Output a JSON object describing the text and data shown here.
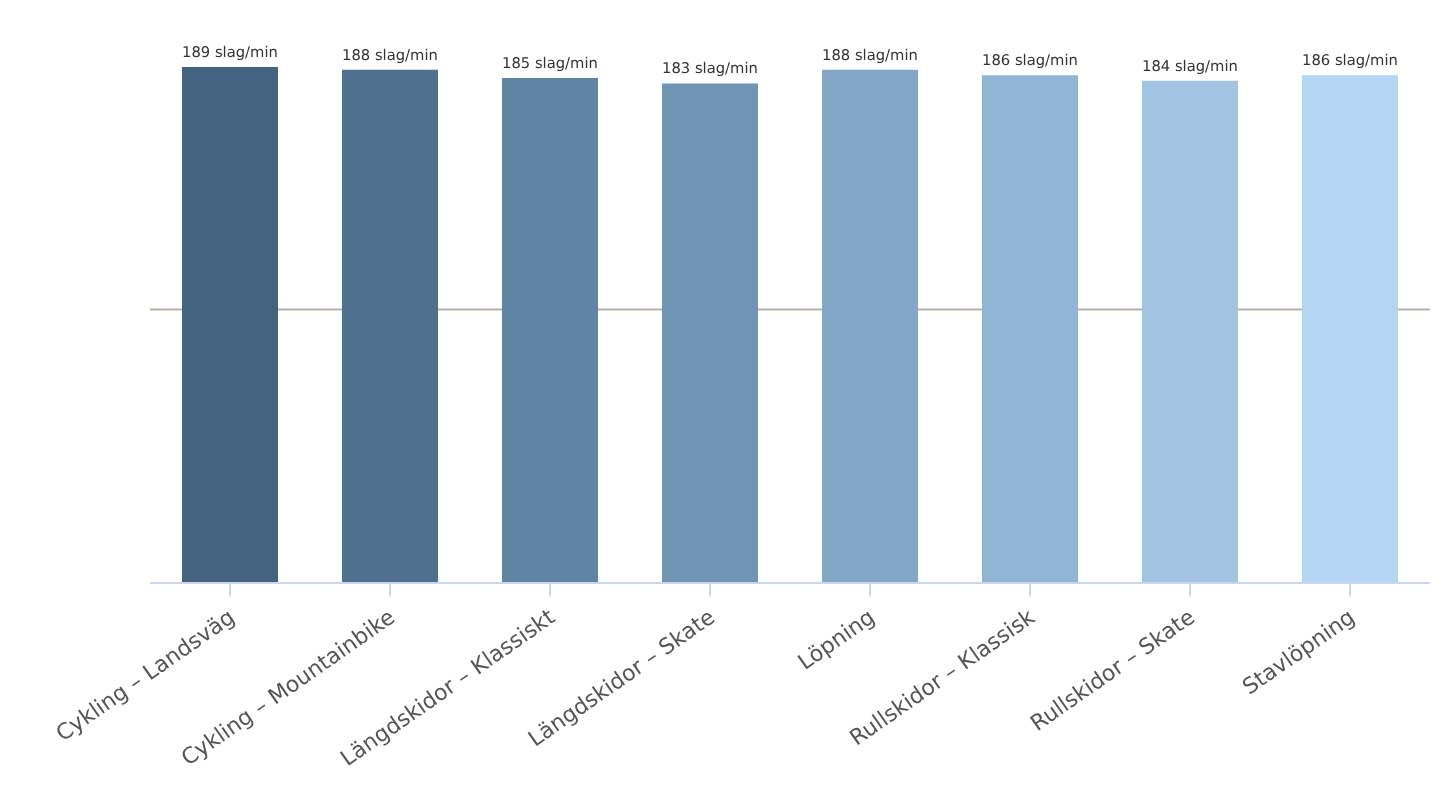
{
  "chart_data": {
    "type": "bar",
    "categories": [
      "Cykling – Landsväg",
      "Cykling – Mountainbike",
      "Längdskidor – Klassiskt",
      "Längdskidor – Skate",
      "Löpning",
      "Rullskidor – Klassisk",
      "Rullskidor – Skate",
      "Stavlöpning"
    ],
    "values": [
      189,
      188,
      185,
      183,
      188,
      186,
      184,
      186
    ],
    "value_labels": [
      "189 slag/min",
      "188 slag/min",
      "185 slag/min",
      "183 slag/min",
      "188 slag/min",
      "186 slag/min",
      "184 slag/min",
      "186 slag/min"
    ],
    "colors": [
      "#44637f",
      "#4f7190",
      "#6084a3",
      "#7196b5",
      "#82a7c7",
      "#91b5d5",
      "#a2c5e4",
      "#b2d6f4"
    ],
    "ref_lines": [
      {
        "axis": "y",
        "value": 100,
        "color": "#b8b0a8"
      }
    ],
    "tick_labels": "x"
  }
}
